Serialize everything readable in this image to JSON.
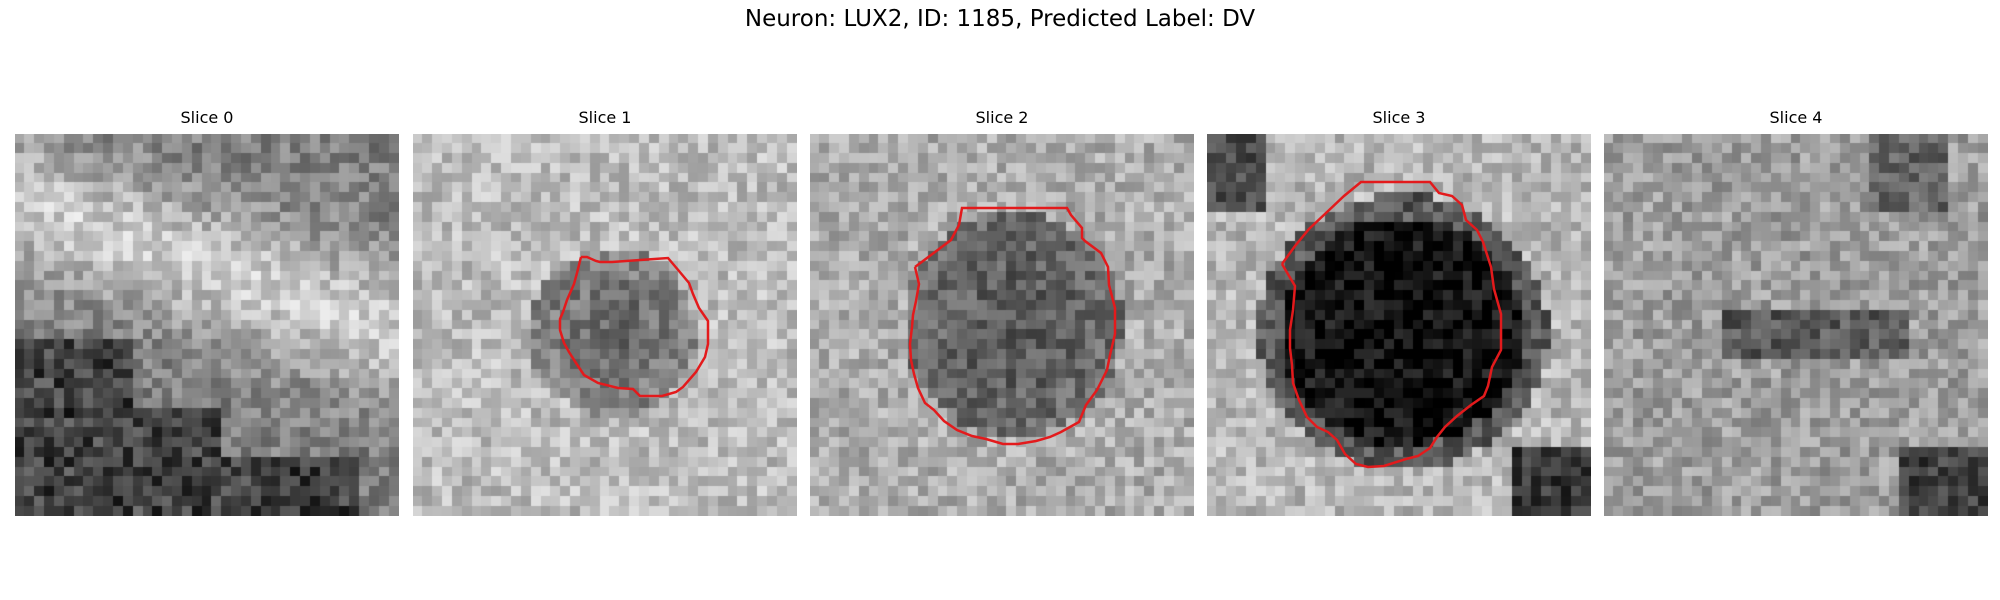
{
  "figure": {
    "title": "Neuron: LUX2, ID: 1185, Predicted Label: DV"
  },
  "contour_color": "#e31a1c",
  "slices": [
    {
      "title": "Slice 0",
      "has_contour": false
    },
    {
      "title": "Slice 1",
      "has_contour": true
    },
    {
      "title": "Slice 2",
      "has_contour": true
    },
    {
      "title": "Slice 3",
      "has_contour": true
    },
    {
      "title": "Slice 4",
      "has_contour": false
    }
  ]
}
